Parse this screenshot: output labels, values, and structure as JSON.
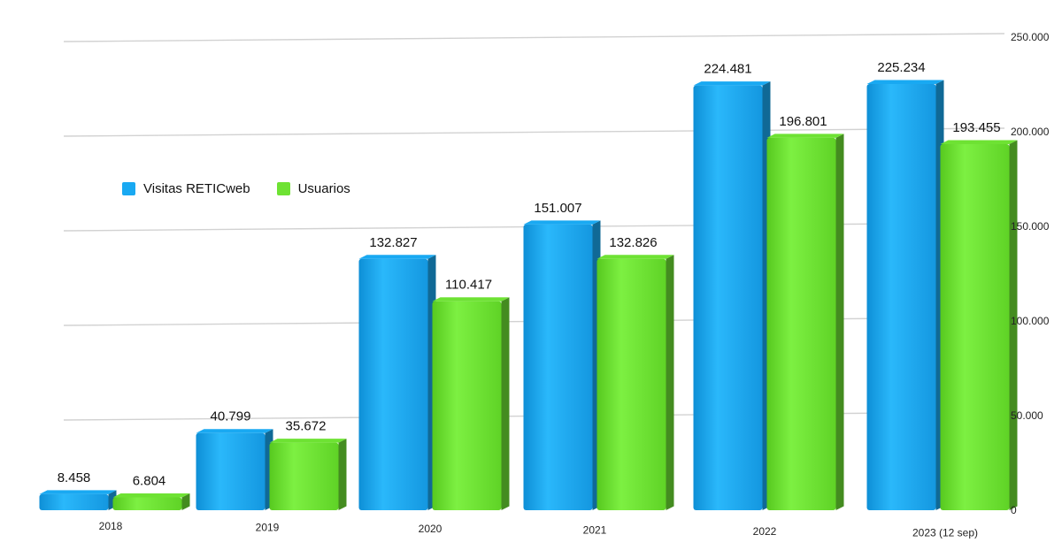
{
  "chart_data": {
    "type": "bar",
    "categories": [
      "2018",
      "2019",
      "2020",
      "2021",
      "2022",
      "2023 (12 sep)"
    ],
    "series": [
      {
        "name": "Visitas RETICweb",
        "color": "#19a9f2",
        "values": [
          8458,
          40799,
          132827,
          151007,
          224481,
          225234
        ],
        "labels": [
          "8.458",
          "40.799",
          "132.827",
          "151.007",
          "224.481",
          "225.234"
        ]
      },
      {
        "name": "Usuarios",
        "color": "#6ee233",
        "values": [
          6804,
          35672,
          110417,
          132826,
          196801,
          193455
        ],
        "labels": [
          "6.804",
          "35.672",
          "110.417",
          "132.826",
          "196.801",
          "193.455"
        ]
      }
    ],
    "yticks": [
      {
        "value": 0,
        "label": "0"
      },
      {
        "value": 50000,
        "label": "50.000"
      },
      {
        "value": 100000,
        "label": "100.000"
      },
      {
        "value": 150000,
        "label": "150.000"
      },
      {
        "value": 200000,
        "label": "200.000"
      },
      {
        "value": 250000,
        "label": "250.000"
      }
    ],
    "ylim": [
      0,
      250000
    ],
    "yaxis_position": "right",
    "grid": true,
    "legend_position": "left",
    "title": "",
    "xlabel": "",
    "ylabel": ""
  }
}
